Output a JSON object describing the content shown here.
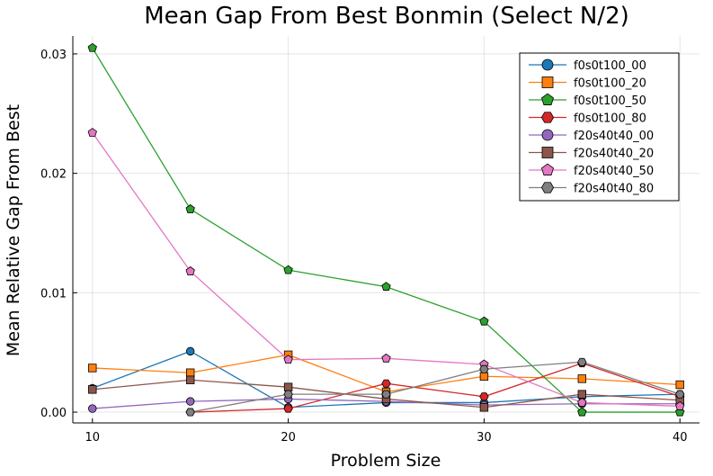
{
  "chart_data": {
    "type": "line",
    "title": "Mean Gap From Best Bonmin (Select N/2)",
    "xlabel": "Problem Size",
    "ylabel": "Mean Relative Gap From Best",
    "xlim": [
      9,
      41
    ],
    "ylim": [
      -0.0009,
      0.0315
    ],
    "xticks": [
      10,
      20,
      30,
      40
    ],
    "xtick_labels": [
      "10",
      "20",
      "30",
      "40"
    ],
    "yticks": [
      0,
      0.01,
      0.02,
      0.03
    ],
    "ytick_labels": [
      "0.00",
      "0.01",
      "0.02",
      "0.03"
    ],
    "grid": true,
    "legend_position": "top-right",
    "x": [
      10,
      15,
      20,
      25,
      30,
      35,
      40
    ],
    "series": [
      {
        "name": "f0s0t100_00",
        "color": "#1f77b4",
        "marker": "circle",
        "values": [
          0.002,
          0.0051,
          0.0004,
          0.0008,
          0.0008,
          0.0013,
          0.0015
        ]
      },
      {
        "name": "f0s0t100_20",
        "color": "#ff7f0e",
        "marker": "square",
        "values": [
          0.0037,
          0.0033,
          0.0048,
          0.0017,
          0.003,
          0.0028,
          0.0023
        ]
      },
      {
        "name": "f0s0t100_50",
        "color": "#2ca02c",
        "marker": "pentagon",
        "values": [
          0.0305,
          0.017,
          0.0119,
          0.0105,
          0.0076,
          0.0,
          0.0
        ]
      },
      {
        "name": "f0s0t100_80",
        "color": "#d62728",
        "marker": "hexagon",
        "values": [
          null,
          0.0,
          0.0003,
          0.0024,
          0.0013,
          0.0041,
          0.0013
        ]
      },
      {
        "name": "f20s40t40_00",
        "color": "#9467bd",
        "marker": "circle",
        "values": [
          0.0003,
          0.0009,
          0.0011,
          0.0009,
          0.0006,
          0.0007,
          0.0007
        ]
      },
      {
        "name": "f20s40t40_20",
        "color": "#8c564b",
        "marker": "square",
        "values": [
          0.0019,
          0.0027,
          0.0021,
          0.0011,
          0.0004,
          0.0015,
          0.001
        ]
      },
      {
        "name": "f20s40t40_50",
        "color": "#e377c2",
        "marker": "pentagon",
        "values": [
          0.0234,
          0.0118,
          0.0044,
          0.0045,
          0.004,
          0.0008,
          0.0005
        ]
      },
      {
        "name": "f20s40t40_80",
        "color": "#7f7f7f",
        "marker": "hexagon",
        "values": [
          null,
          0.0,
          0.0015,
          0.0015,
          0.0036,
          0.0042,
          0.0015
        ]
      }
    ]
  }
}
